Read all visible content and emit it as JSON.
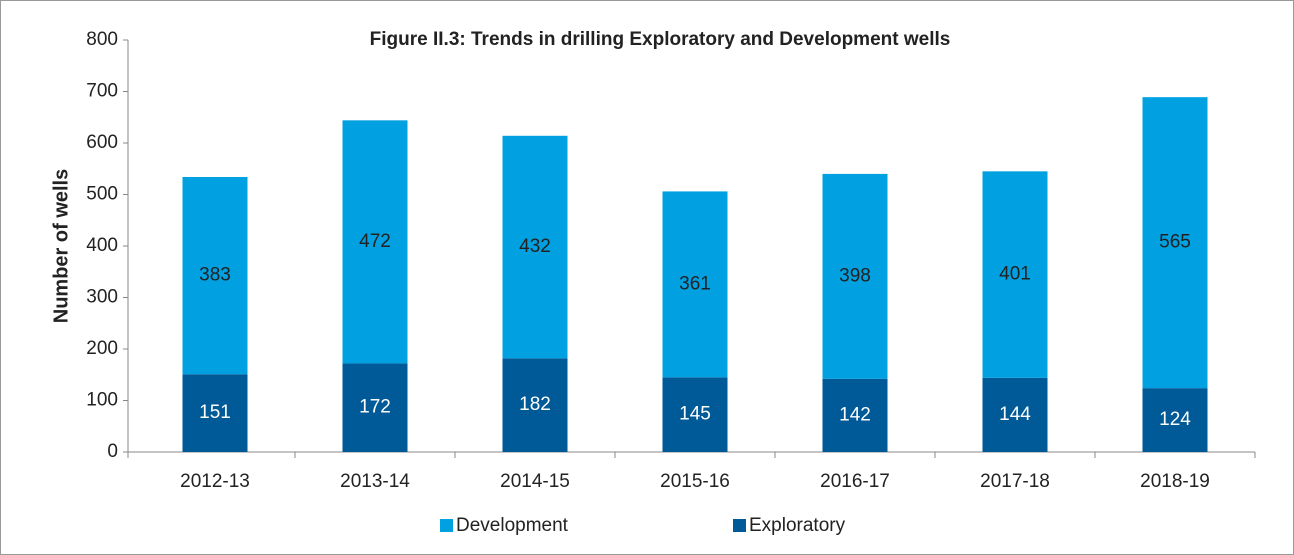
{
  "chart_data": {
    "type": "stacked_bar",
    "title": "Figure II.3: Trends in drilling Exploratory and Development wells",
    "y_label": "Number of wells",
    "categories": [
      "2012-13",
      "2013-14",
      "2014-15",
      "2015-16",
      "2016-17",
      "2017-18",
      "2018-19"
    ],
    "series": [
      {
        "name": "Development",
        "color": "#00a0e1",
        "values": [
          383,
          472,
          432,
          361,
          398,
          401,
          565
        ]
      },
      {
        "name": "Exploratory",
        "color": "#005a97",
        "values": [
          151,
          172,
          182,
          145,
          142,
          144,
          124
        ]
      }
    ],
    "ylim": [
      0,
      800
    ],
    "yticks": [
      0,
      100,
      200,
      300,
      400,
      500,
      600,
      700,
      800
    ],
    "grid": false,
    "legend": "bottom"
  }
}
